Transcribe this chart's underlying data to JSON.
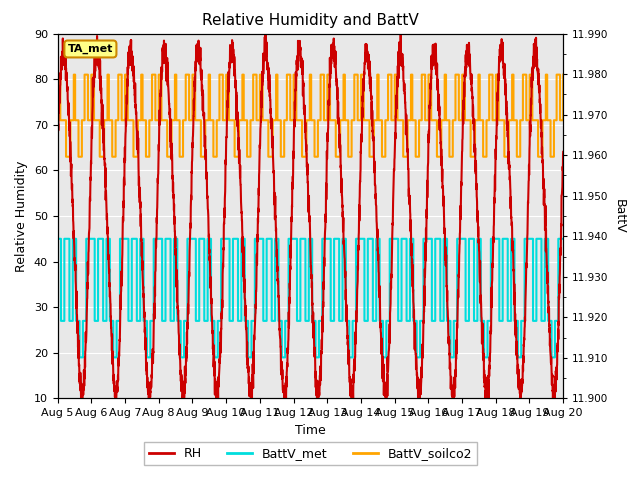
{
  "title": "Relative Humidity and BattV",
  "xlabel": "Time",
  "ylabel_left": "Relative Humidity",
  "ylabel_right": "BattV",
  "ylim_left": [
    10,
    90
  ],
  "ylim_right": [
    11.9,
    11.99
  ],
  "bg_color": "#e8e8e8",
  "annotation_label": "TA_met",
  "legend_entries": [
    "RH",
    "BattV_met",
    "BattV_soilco2"
  ],
  "legend_colors": [
    "#cc0000",
    "#00dddd",
    "#ffa500"
  ],
  "rh_color": "#cc0000",
  "battv_met_color": "#00dddd",
  "battv_soilco2_color": "#ffa500",
  "rh_linewidth": 1.5,
  "batt_linewidth": 1.5,
  "yticks_left": [
    10,
    20,
    30,
    40,
    50,
    60,
    70,
    80,
    90
  ],
  "yticks_right": [
    11.9,
    11.91,
    11.92,
    11.93,
    11.94,
    11.95,
    11.96,
    11.97,
    11.98,
    11.99
  ],
  "xtick_labels": [
    "Aug 5",
    "Aug 6",
    "Aug 7",
    "Aug 8",
    "Aug 9",
    "Aug 10",
    "Aug 11",
    "Aug 12",
    "Aug 13",
    "Aug 14",
    "Aug 15",
    "Aug 16",
    "Aug 17",
    "Aug 18",
    "Aug 19",
    "Aug 20"
  ],
  "figsize": [
    6.4,
    4.8
  ],
  "dpi": 100
}
